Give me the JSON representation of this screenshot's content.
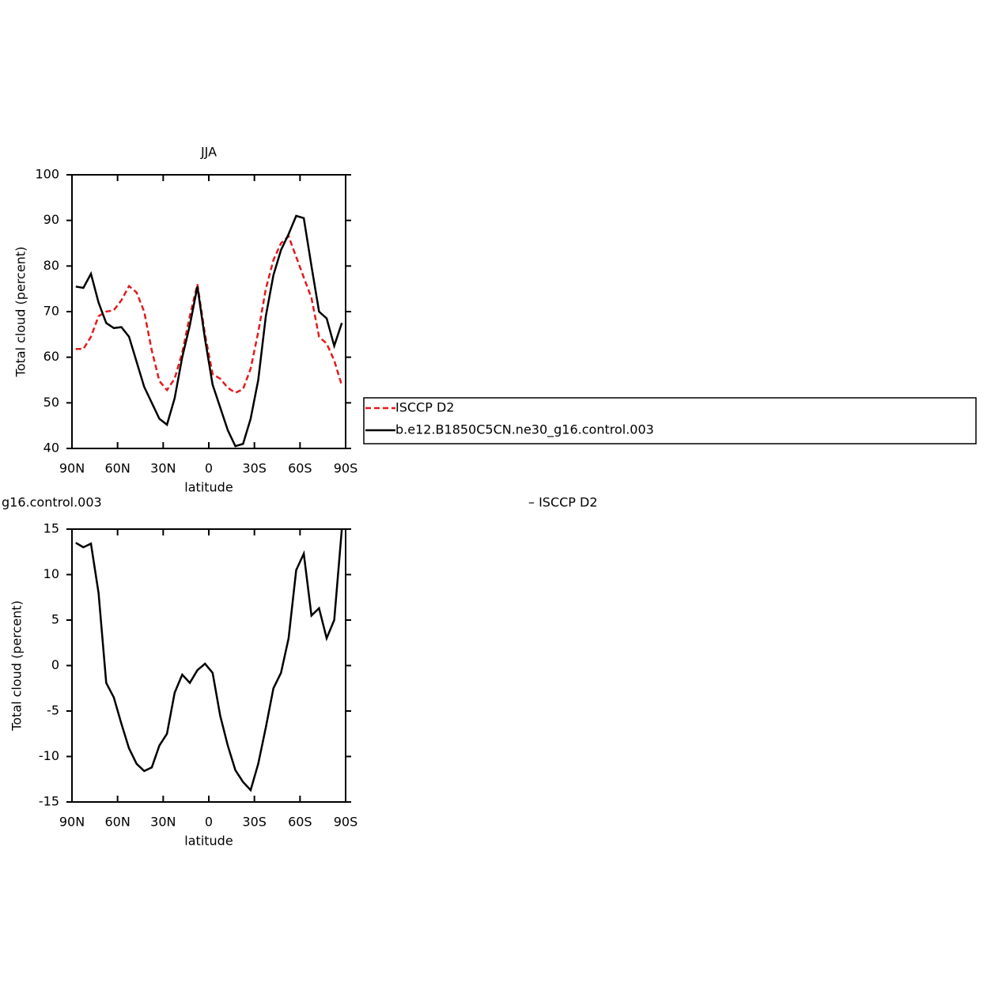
{
  "chart_data": [
    {
      "type": "line",
      "title": "JJA",
      "xlabel": "latitude",
      "ylabel": "Total cloud (percent)",
      "x": [
        87.5,
        82.5,
        77.5,
        72.5,
        67.5,
        62.5,
        57.5,
        52.5,
        47.5,
        42.5,
        37.5,
        32.5,
        27.5,
        22.5,
        17.5,
        12.5,
        7.5,
        2.5,
        -2.5,
        -7.5,
        -12.5,
        -17.5,
        -22.5,
        -27.5,
        -32.5,
        -37.5,
        -42.5,
        -47.5,
        -52.5,
        -57.5,
        -62.5,
        -67.5,
        -72.5,
        -77.5,
        -82.5,
        -87.5
      ],
      "series": [
        {
          "name": "ISCCP D2",
          "color": "#e41a1c",
          "dashed": true,
          "values": [
            61.8,
            61.8,
            64.5,
            69,
            70,
            70.3,
            72.5,
            75.6,
            74.2,
            70,
            61.5,
            54.8,
            52.8,
            55.3,
            61,
            69,
            76,
            65,
            56.3,
            55.3,
            53.3,
            52.2,
            53,
            57.5,
            65.5,
            75,
            81.3,
            85,
            86.5,
            82,
            77.5,
            73,
            64.5,
            63,
            59.3,
            53.8
          ]
        },
        {
          "name": "b.e12.B1850C5CN.ne30_g16.control.003",
          "color": "#000000",
          "dashed": false,
          "values": [
            75.5,
            75.2,
            78.3,
            72,
            67.5,
            66.4,
            66.6,
            64.5,
            59,
            53.5,
            50,
            46.5,
            45.2,
            51,
            60,
            67,
            75.5,
            64,
            54,
            49,
            44,
            40.5,
            41,
            46.5,
            55,
            69,
            78,
            83.5,
            87,
            91,
            90.5,
            80,
            70,
            68.5,
            62.5,
            67.5
          ]
        }
      ],
      "xlim": [
        90,
        -90
      ],
      "xticks": [
        {
          "value": 90,
          "label": "90N"
        },
        {
          "value": 60,
          "label": "60N"
        },
        {
          "value": 30,
          "label": "30N"
        },
        0,
        {
          "value": -30,
          "label": "30S"
        },
        {
          "value": -60,
          "label": "60S"
        },
        {
          "value": -90,
          "label": "90S"
        }
      ],
      "ylim": [
        40,
        100
      ],
      "yticks": [
        40,
        50,
        60,
        70,
        80,
        90,
        100
      ],
      "legend": "right"
    },
    {
      "type": "line",
      "title_left": "g16.control.003",
      "title_right": "– ISCCP D2",
      "xlabel": "latitude",
      "ylabel": "Total cloud (percent)",
      "x": [
        87.5,
        82.5,
        77.5,
        72.5,
        67.5,
        62.5,
        57.5,
        52.5,
        47.5,
        42.5,
        37.5,
        32.5,
        27.5,
        22.5,
        17.5,
        12.5,
        7.5,
        2.5,
        -2.5,
        -7.5,
        -12.5,
        -17.5,
        -22.5,
        -27.5,
        -32.5,
        -37.5,
        -42.5,
        -47.5,
        -52.5,
        -57.5,
        -62.5,
        -67.5,
        -72.5,
        -77.5,
        -82.5,
        -87.5
      ],
      "series": [
        {
          "color": "#000000",
          "dashed": false,
          "values": [
            13.5,
            13,
            13.4,
            8,
            -1.9,
            -3.5,
            -6.4,
            -9.1,
            -10.8,
            -11.6,
            -11.2,
            -8.8,
            -7.5,
            -3,
            -1,
            -1.9,
            -0.5,
            0.2,
            -0.8,
            -5.5,
            -8.8,
            -11.5,
            -12.8,
            -13.7,
            -10.8,
            -6.8,
            -2.5,
            -0.8,
            3,
            10.5,
            12.3,
            5.5,
            6.3,
            3,
            5,
            15
          ]
        }
      ],
      "xlim": [
        90,
        -90
      ],
      "xticks": [
        {
          "value": 90,
          "label": "90N"
        },
        {
          "value": 60,
          "label": "60N"
        },
        {
          "value": 30,
          "label": "30N"
        },
        0,
        {
          "value": -30,
          "label": "30S"
        },
        {
          "value": -60,
          "label": "60S"
        },
        {
          "value": -90,
          "label": "90S"
        }
      ],
      "ylim": [
        -15,
        15
      ],
      "yticks": [
        -15,
        -10,
        -5,
        0,
        5,
        10,
        15
      ]
    }
  ]
}
